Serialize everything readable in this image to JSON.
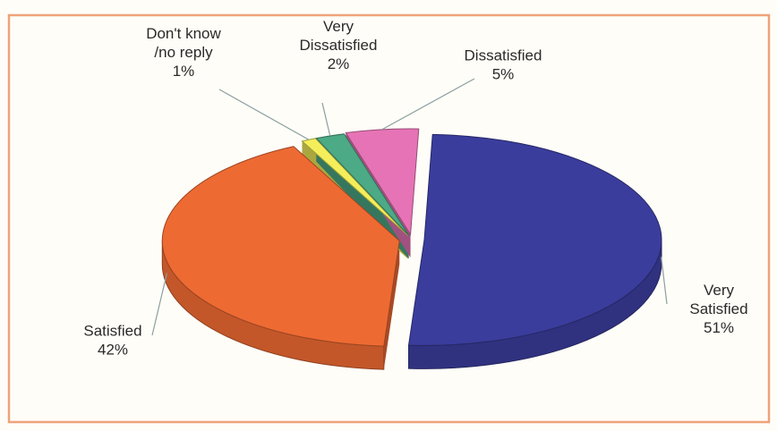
{
  "chart_data": {
    "type": "pie",
    "style": "3d-exploded",
    "legend": "none",
    "slices": [
      {
        "label_lines": [
          "Very",
          "Satisfied"
        ],
        "value": 51,
        "value_label": "51%",
        "color": "#3a3d9c"
      },
      {
        "label_lines": [
          "Satisfied"
        ],
        "value": 42,
        "value_label": "42%",
        "color": "#ee6a33"
      },
      {
        "label_lines": [
          "Don't know",
          "/no reply"
        ],
        "value": 1,
        "value_label": "1%",
        "color": "#f4ee5a"
      },
      {
        "label_lines": [
          "Very",
          "Dissatisfied"
        ],
        "value": 2,
        "value_label": "2%",
        "color": "#4caa86"
      },
      {
        "label_lines": [
          "Dissatisfied"
        ],
        "value": 5,
        "value_label": "5%",
        "color": "#e673b5"
      }
    ],
    "frame_color": "#f0a27a"
  }
}
